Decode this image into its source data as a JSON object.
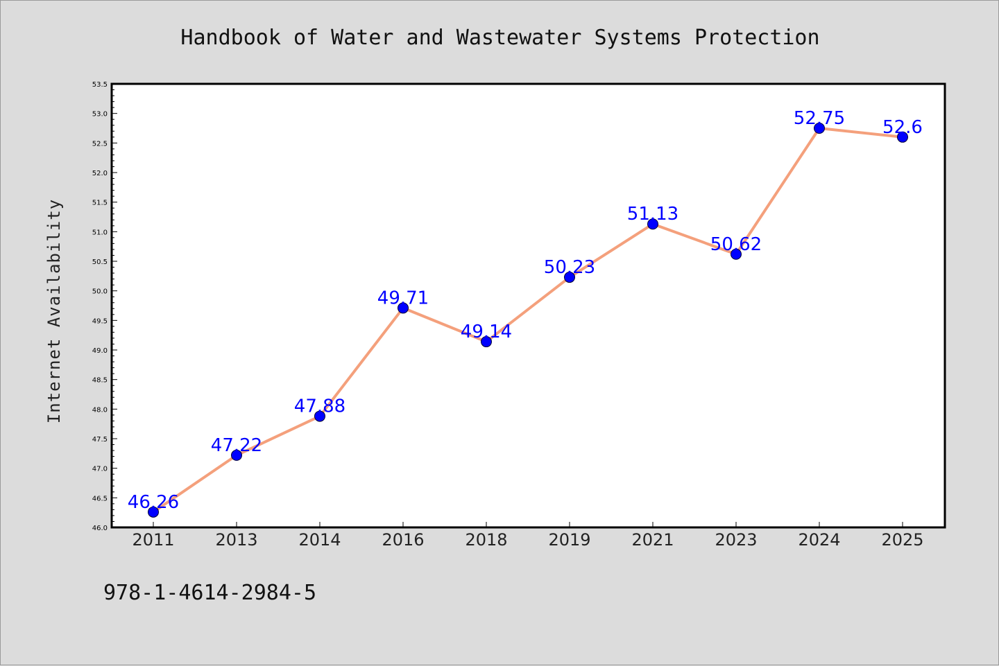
{
  "chart_data": {
    "type": "line",
    "title": "Handbook of Water and Wastewater Systems Protection",
    "xlabel": "",
    "ylabel": "Internet Availability",
    "categories": [
      "2011",
      "2013",
      "2014",
      "2016",
      "2018",
      "2019",
      "2021",
      "2023",
      "2024",
      "2025"
    ],
    "series": [
      {
        "values": [
          46.26,
          47.22,
          47.88,
          49.71,
          49.14,
          50.23,
          51.13,
          50.62,
          52.75,
          52.6
        ],
        "labels": [
          "46.26",
          "47.22",
          "47.88",
          "49.71",
          "49.14",
          "50.23",
          "51.13",
          "50.62",
          "52.75",
          "52.6"
        ],
        "line_color": "#f4a07c",
        "marker_color": "#0000ff"
      }
    ],
    "ylim": [
      46.0,
      53.5
    ],
    "yticks": [
      "46.0",
      "46.5",
      "47.0",
      "47.5",
      "48.0",
      "48.5",
      "49.0",
      "49.5",
      "50.0",
      "50.5",
      "51.0",
      "51.5",
      "52.0",
      "52.5",
      "53.0",
      "53.5"
    ],
    "grid": false,
    "legend": "none"
  },
  "footer": {
    "isbn": "978-1-4614-2984-5"
  },
  "colors": {
    "background": "#dcdcdc",
    "plot_area": "#ffffff",
    "axes": "#000000",
    "line": "#f4a07c",
    "markers": "#0000ff",
    "data_labels": "#0000ff"
  }
}
